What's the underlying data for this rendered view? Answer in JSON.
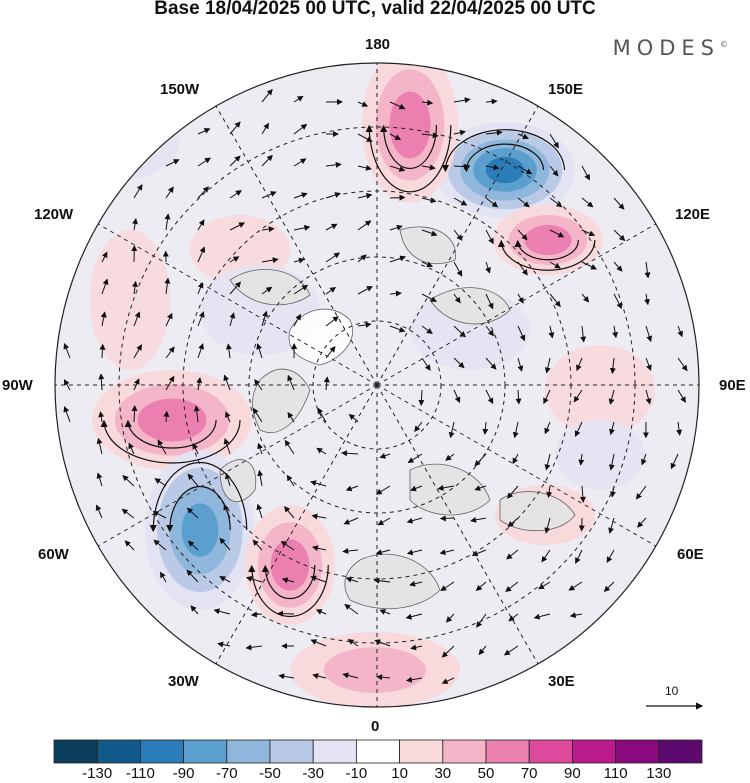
{
  "title": "Base 18/04/2025 00 UTC, valid 22/04/2025 00 UTC",
  "brand": "MODES",
  "brand_mark": "©",
  "longitude_labels": {
    "lon_180": "180",
    "lon_150W": "150W",
    "lon_150E": "150E",
    "lon_120W": "120W",
    "lon_120E": "120E",
    "lon_90W": "90W",
    "lon_90E": "90E",
    "lon_60W": "60W",
    "lon_60E": "60E",
    "lon_30W": "30W",
    "lon_30E": "30E",
    "lon_0": "0"
  },
  "reference_vector": {
    "label": "10"
  },
  "colorbar": {
    "labels": [
      "-130",
      "-110",
      "-90",
      "-70",
      "-50",
      "-30",
      "-10",
      "10",
      "30",
      "50",
      "70",
      "90",
      "110",
      "130"
    ],
    "colors": [
      "#0b3d5c",
      "#125a8a",
      "#2a7db8",
      "#5a9fcd",
      "#8fb6db",
      "#b9c9e6",
      "#e3e3f3",
      "#ffffff",
      "#f8d9dc",
      "#f4b5c8",
      "#ea7fb0",
      "#dd4a9c",
      "#bb1a8c",
      "#8a0a7e",
      "#5c0a6e"
    ]
  },
  "anomaly_centers": [
    {
      "name": "low-150E",
      "sign": "negative",
      "strength": 110
    },
    {
      "name": "high-180",
      "sign": "positive",
      "strength": 70
    },
    {
      "name": "high-120E",
      "sign": "positive",
      "strength": 70
    },
    {
      "name": "high-90W",
      "sign": "positive",
      "strength": 70
    },
    {
      "name": "low-60W",
      "sign": "negative",
      "strength": 90
    },
    {
      "name": "high-40W",
      "sign": "positive",
      "strength": 70
    },
    {
      "name": "high-0",
      "sign": "positive",
      "strength": 50
    },
    {
      "name": "high-45E",
      "sign": "positive",
      "strength": 30
    }
  ]
}
